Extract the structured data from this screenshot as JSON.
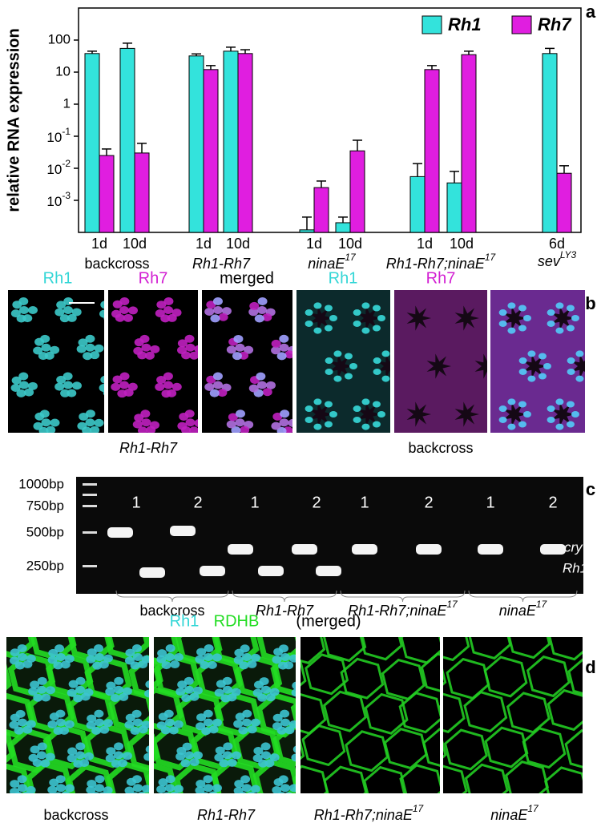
{
  "chart_data": {
    "type": "bar",
    "panel": "a",
    "y_label": "relative RNA expression",
    "log_scale": true,
    "ylim": [
      0.0001,
      1000
    ],
    "yticks": [
      100,
      10,
      1,
      {
        "value": 0.1,
        "label": "10",
        "sup": "-1"
      },
      {
        "value": 0.01,
        "label": "10",
        "sup": "-2"
      },
      {
        "value": 0.001,
        "label": "10",
        "sup": "-3"
      }
    ],
    "groups": [
      {
        "label": "backcross",
        "days": [
          "1d",
          "10d"
        ]
      },
      {
        "label": "Rh1-Rh7",
        "days": [
          "1d",
          "10d"
        ]
      },
      {
        "label": "ninaE",
        "sup": "17",
        "days": [
          "1d",
          "10d"
        ]
      },
      {
        "label": "Rh1-Rh7;ninaE",
        "sup": "17",
        "days": [
          "1d",
          "10d"
        ]
      },
      {
        "label": "sev",
        "sup": "LY3",
        "days": [
          "6d"
        ]
      }
    ],
    "series": [
      {
        "name": "Rh1",
        "color": "#33e3dc",
        "values": [
          38,
          55,
          32,
          45,
          0.00012,
          0.0002,
          0.0055,
          0.0035,
          38
        ],
        "errors": [
          7,
          25,
          5,
          15,
          0.00018,
          0.0001,
          0.0085,
          0.0045,
          17
        ]
      },
      {
        "name": "Rh7",
        "color": "#e01ee0",
        "values": [
          0.025,
          0.03,
          12,
          38,
          0.0025,
          0.035,
          12,
          35,
          0.007
        ],
        "errors": [
          0.015,
          0.03,
          4,
          12,
          0.0015,
          0.04,
          4,
          10,
          0.005
        ]
      }
    ],
    "legend": "top-right"
  },
  "panel_b": {
    "label": "b",
    "channels": [
      {
        "text": "Rh1",
        "color": "#33d6d6"
      },
      {
        "text": "Rh7",
        "color": "#d21ed2"
      },
      {
        "text": "merged",
        "color": "#000000"
      },
      {
        "text": "Rh1",
        "color": "#33d6d6"
      },
      {
        "text": "Rh7",
        "color": "#d21ed2"
      }
    ],
    "captions": [
      {
        "text": "Rh1-Rh7"
      },
      {
        "text": "backcross"
      }
    ]
  },
  "panel_c": {
    "label": "c",
    "ladder": [
      "1000bp",
      "750bp",
      "500bp",
      "250bp"
    ],
    "lanes": [
      1,
      2,
      1,
      2,
      1,
      2,
      1,
      2
    ],
    "bands": [
      "cry",
      "Rh1"
    ],
    "groups": [
      {
        "text": "backcross"
      },
      {
        "text": "Rh1-Rh7"
      },
      {
        "text": "Rh1-Rh7;ninaE",
        "sup": "17"
      },
      {
        "text": "ninaE",
        "sup": "17"
      }
    ]
  },
  "panel_d": {
    "label": "d",
    "header": [
      {
        "text": "Rh1",
        "color": "#33d6d6"
      },
      {
        "text": "RDHB",
        "color": "#22dd22"
      },
      {
        "text": "(merged)",
        "color": "#000000"
      }
    ],
    "captions": [
      {
        "text": "backcross"
      },
      {
        "text": "Rh1-Rh7"
      },
      {
        "text": "Rh1-Rh7;ninaE",
        "sup": "17"
      },
      {
        "text": "ninaE",
        "sup": "17"
      }
    ]
  }
}
